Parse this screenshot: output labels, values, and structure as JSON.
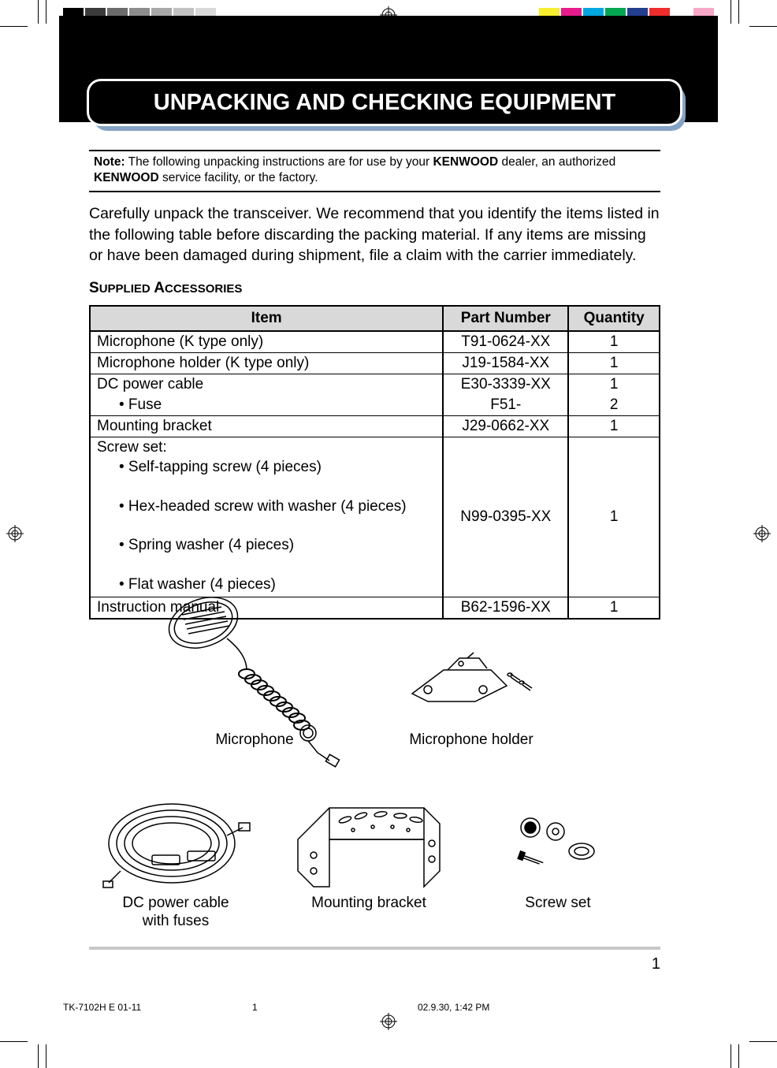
{
  "register_marks": {
    "stroke": "#000000"
  },
  "swatches_left": [
    "#000000",
    "#3b3b3b",
    "#6b6b6b",
    "#8c8c8c",
    "#a8a8a8",
    "#c2c2c2",
    "#d9d9d9",
    "#ffffff"
  ],
  "swatches_right": [
    "#f7ef2d",
    "#e71b8b",
    "#00a7e1",
    "#00a650",
    "#223e8f",
    "#ee2c2c",
    "#ffffff",
    "#f8a8c8"
  ],
  "title_band_color": "#000000",
  "heading": {
    "text": "UNPACKING AND CHECKING EQUIPMENT",
    "bg": "#000000",
    "border": "#ffffff",
    "shadow": "#85a4c4",
    "text_color": "#ffffff",
    "font_size": 29
  },
  "note": {
    "label": "Note:",
    "text_before_brand1": "The following unpacking instructions are for use by your ",
    "brand1": "KENWOOD",
    "text_mid": " dealer, an authorized ",
    "brand2": "KENWOOD",
    "text_after": " service facility, or the factory.",
    "border_color": "#000000",
    "font_size": 15.5
  },
  "body": {
    "text": "Carefully unpack the transceiver.  We recommend that you identify the items listed in the following table before discarding the packing material.  If any items are missing or have been damaged during shipment, file a claim with the carrier immediately.",
    "font_size": 19.5
  },
  "section_title_parts": {
    "s_big": "S",
    "upplied": "UPPLIED",
    "sp": " ",
    "a_big": "A",
    "ccessories": "CCESSORIES"
  },
  "table": {
    "header_bg": "#d9d9d9",
    "border_color": "#000000",
    "columns": {
      "item": "Item",
      "part": "Part Number",
      "qty": "Quantity",
      "widths_pct": [
        62,
        22,
        16
      ]
    },
    "rows": [
      {
        "item": "Microphone (K type only)",
        "part": "T91-0624-XX",
        "qty": "1",
        "sep": true
      },
      {
        "item": "Microphone holder (K type only)",
        "part": "J19-1584-XX",
        "qty": "1",
        "sep": true
      },
      {
        "item": "DC power cable",
        "part": "E30-3339-XX",
        "qty": "1",
        "sep": true
      },
      {
        "item_sub": "• Fuse",
        "part": "F51-",
        "qty": "2",
        "sep": false
      },
      {
        "item": "Mounting bracket",
        "part": "J29-0662-XX",
        "qty": "1",
        "sep": true
      },
      {
        "item_multi": [
          "Screw set:",
          "• Self-tapping screw (4 pieces)",
          "• Hex-headed screw with washer (4 pieces)",
          "• Spring washer (4 pieces)",
          "• Flat washer (4 pieces)"
        ],
        "part": "N99-0395-XX",
        "qty": "1",
        "sep": true
      },
      {
        "item": "Instruction manual",
        "part": "B62-1596-XX",
        "qty": "1",
        "sep": true,
        "last": true
      }
    ]
  },
  "figures": {
    "microphone": "Microphone",
    "mic_holder": "Microphone holder",
    "dc_cable_l1": "DC power cable",
    "dc_cable_l2": "with fuses",
    "bracket": "Mounting bracket",
    "screw_set": "Screw set",
    "line_stroke": "#000000",
    "label_font_size": 19
  },
  "page_number": "1",
  "hr_color": "#c8c8c8",
  "footer": {
    "doc": "TK-7102H E 01-11",
    "page": "1",
    "timestamp": "02.9.30, 1:42 PM",
    "font_size": 12
  }
}
